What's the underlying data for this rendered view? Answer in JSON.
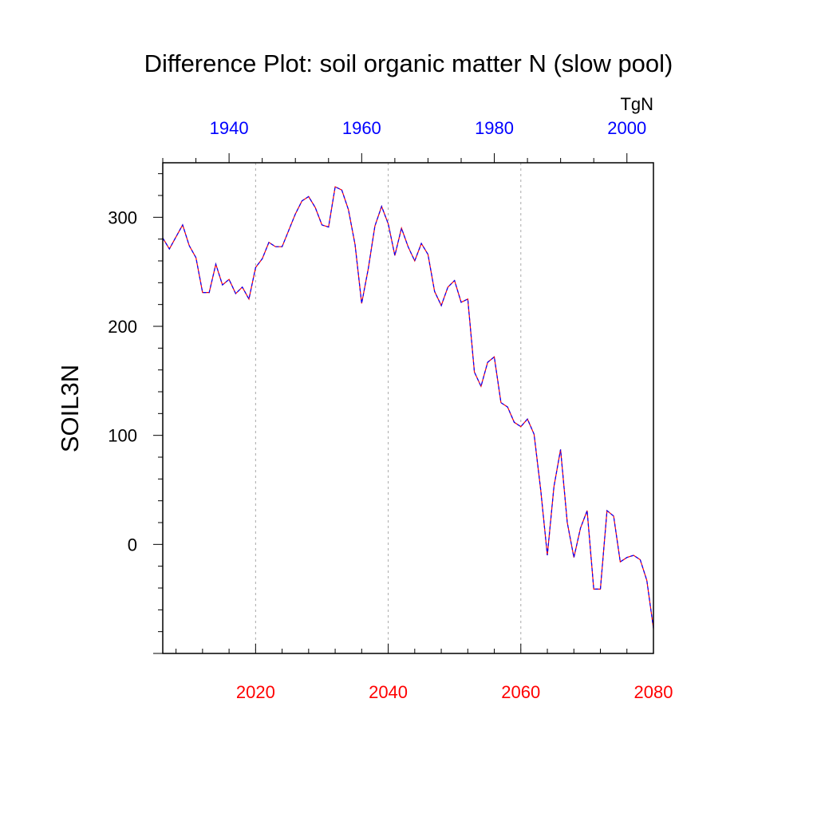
{
  "chart_data": {
    "type": "line",
    "title": "Difference Plot: soil organic matter N (slow pool)",
    "units": "TgN",
    "ylabel": "SOIL3N",
    "xlabel": "",
    "xlim": [
      2006,
      2080
    ],
    "ylim": [
      -100,
      350
    ],
    "grid": "vertical dashed at major bottom ticks",
    "y_ticks": [
      0,
      100,
      200,
      300
    ],
    "y_tick_labels": [
      "0",
      "100",
      "200",
      "300"
    ],
    "x_bottom_ticks": [
      2020,
      2040,
      2060,
      2080
    ],
    "x_bottom_tick_labels": [
      "2020",
      "2040",
      "2060",
      "2080"
    ],
    "x_top_ticks": [
      2016,
      2036,
      2056,
      2076
    ],
    "x_top_tick_labels": [
      "1940",
      "1960",
      "1980",
      "2000"
    ],
    "colors": {
      "bottom_axis": "#ff0000",
      "top_axis": "#0000ff",
      "series_a": "#ff0000",
      "series_b": "#0000ff",
      "grid": "#aaaaaa"
    },
    "x": [
      2006,
      2007,
      2008,
      2009,
      2010,
      2011,
      2012,
      2013,
      2014,
      2015,
      2016,
      2017,
      2018,
      2019,
      2020,
      2021,
      2022,
      2023,
      2024,
      2025,
      2026,
      2027,
      2028,
      2029,
      2030,
      2031,
      2032,
      2033,
      2034,
      2035,
      2036,
      2037,
      2038,
      2039,
      2040,
      2041,
      2042,
      2043,
      2044,
      2045,
      2046,
      2047,
      2048,
      2049,
      2050,
      2051,
      2052,
      2053,
      2054,
      2055,
      2056,
      2057,
      2058,
      2059,
      2060,
      2061,
      2062,
      2063,
      2064,
      2065,
      2066,
      2067,
      2068,
      2069,
      2070,
      2071,
      2072,
      2073,
      2074,
      2075,
      2076,
      2077,
      2078,
      2079,
      2080
    ],
    "values": [
      281,
      271,
      282,
      293,
      274,
      263,
      231,
      231,
      257,
      238,
      243,
      230,
      236,
      225,
      254,
      262,
      277,
      273,
      273,
      288,
      303,
      315,
      319,
      309,
      293,
      291,
      328,
      325,
      307,
      275,
      221,
      253,
      292,
      310,
      294,
      265,
      290,
      273,
      260,
      276,
      266,
      232,
      219,
      236,
      242,
      222,
      225,
      158,
      145,
      167,
      172,
      130,
      126,
      112,
      108,
      115,
      101,
      50,
      -10,
      53,
      87,
      20,
      -12,
      15,
      31,
      -41,
      -41,
      31,
      26,
      -16,
      -12,
      -10,
      -14,
      -33,
      -77
    ]
  }
}
